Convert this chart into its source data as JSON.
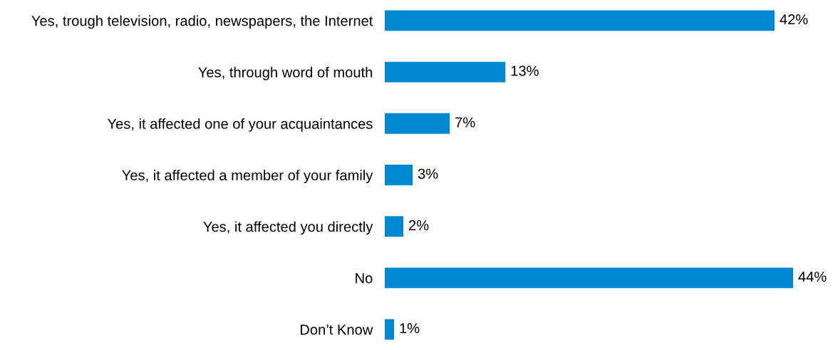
{
  "chart_data": {
    "type": "bar",
    "orientation": "horizontal",
    "categories": [
      "Yes, trough television, radio, newspapers, the Internet",
      "Yes, through word of mouth",
      "Yes, it affected one of your acquaintances",
      "Yes, it affected a member of your family",
      "Yes, it affected you directly",
      "No",
      "Don’t Know"
    ],
    "values": [
      42,
      13,
      7,
      3,
      2,
      44,
      1
    ],
    "value_labels": [
      "42%",
      "13%",
      "7%",
      "3%",
      "2%",
      "44%",
      "1%"
    ],
    "color": "#0089d2",
    "grid": false,
    "legend": false
  }
}
